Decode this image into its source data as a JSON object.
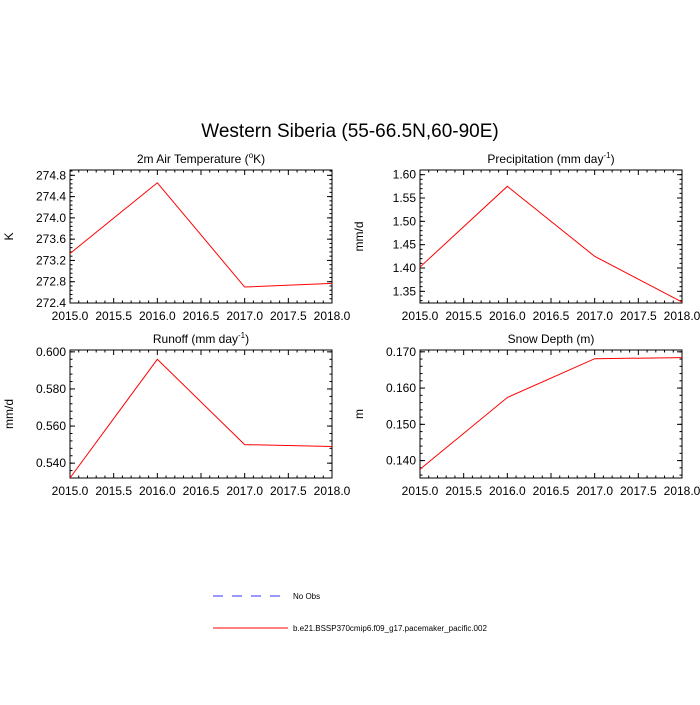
{
  "figure": {
    "title": "Western Siberia (55-66.5N,60-90E)"
  },
  "legend": {
    "entries": [
      {
        "label": "No Obs",
        "color": "#0000ff",
        "style": "dashed"
      },
      {
        "label": "b.e21.BSSP370cmip6.f09_g17.pacemaker_pacific.002",
        "color": "#ff0000",
        "style": "solid"
      }
    ]
  },
  "chart_data": [
    {
      "type": "line",
      "title": "2m Air Temperature (",
      "title_sup": "o",
      "title_tail": "K)",
      "ylabel": "K",
      "x": [
        2015.0,
        2016.0,
        2017.0,
        2018.0
      ],
      "xlim": [
        2015.0,
        2018.0
      ],
      "xticks": [
        "2015.0",
        "2015.5",
        "2016.0",
        "2016.5",
        "2017.0",
        "2017.5",
        "2018.0"
      ],
      "ylim": [
        272.4,
        274.9
      ],
      "yticks": [
        "272.4",
        "272.8",
        "273.2",
        "273.6",
        "274.0",
        "274.4",
        "274.8"
      ],
      "ytick_values": [
        272.4,
        272.8,
        273.2,
        273.6,
        274.0,
        274.4,
        274.8
      ],
      "series": [
        {
          "color": "#ff0000",
          "values": [
            273.33,
            274.66,
            272.7,
            272.77
          ]
        }
      ]
    },
    {
      "type": "line",
      "title": "Precipitation (mm day",
      "title_sup": "-1",
      "title_tail": ")",
      "ylabel": "mm/d",
      "x": [
        2015.0,
        2016.0,
        2017.0,
        2018.0
      ],
      "xlim": [
        2015.0,
        2018.0
      ],
      "xticks": [
        "2015.0",
        "2015.5",
        "2016.0",
        "2016.5",
        "2017.0",
        "2017.5",
        "2018.0"
      ],
      "ylim": [
        1.325,
        1.61
      ],
      "yticks": [
        "1.35",
        "1.40",
        "1.45",
        "1.50",
        "1.55",
        "1.60"
      ],
      "ytick_values": [
        1.35,
        1.4,
        1.45,
        1.5,
        1.55,
        1.6
      ],
      "series": [
        {
          "color": "#ff0000",
          "values": [
            1.402,
            1.575,
            1.425,
            1.327
          ]
        }
      ]
    },
    {
      "type": "line",
      "title": "Runoff (mm day",
      "title_sup": "-1",
      "title_tail": ")",
      "ylabel": "mm/d",
      "x": [
        2015.0,
        2016.0,
        2017.0,
        2018.0
      ],
      "xlim": [
        2015.0,
        2018.0
      ],
      "xticks": [
        "2015.0",
        "2015.5",
        "2016.0",
        "2016.5",
        "2017.0",
        "2017.5",
        "2018.0"
      ],
      "ylim": [
        0.532,
        0.601
      ],
      "yticks": [
        "0.540",
        "0.560",
        "0.580",
        "0.600"
      ],
      "ytick_values": [
        0.54,
        0.56,
        0.58,
        0.6
      ],
      "series": [
        {
          "color": "#ff0000",
          "values": [
            0.532,
            0.596,
            0.55,
            0.549
          ]
        }
      ]
    },
    {
      "type": "line",
      "title": "Snow Depth (m)",
      "title_sup": "",
      "title_tail": "",
      "ylabel": "m",
      "x": [
        2015.0,
        2016.0,
        2017.0,
        2018.0
      ],
      "xlim": [
        2015.0,
        2018.0
      ],
      "xticks": [
        "2015.0",
        "2015.5",
        "2016.0",
        "2016.5",
        "2017.0",
        "2017.5",
        "2018.0"
      ],
      "ylim": [
        0.1352,
        0.1705
      ],
      "yticks": [
        "0.140",
        "0.150",
        "0.160",
        "0.170"
      ],
      "ytick_values": [
        0.14,
        0.15,
        0.16,
        0.17
      ],
      "series": [
        {
          "color": "#ff0000",
          "values": [
            0.1376,
            0.1574,
            0.1681,
            0.1684
          ]
        }
      ]
    }
  ]
}
